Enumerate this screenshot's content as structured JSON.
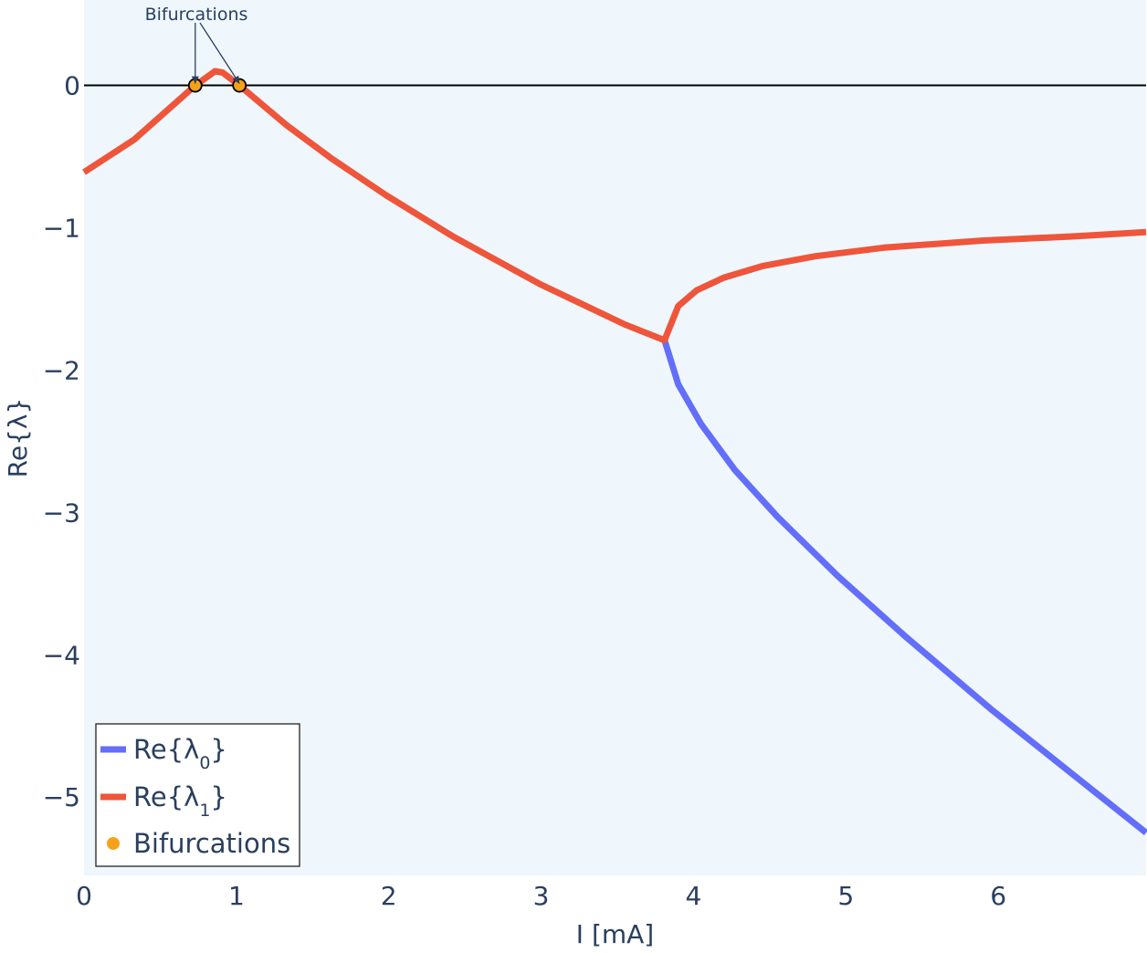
{
  "chart_data": {
    "type": "line",
    "xlabel": "I [mA]",
    "ylabel": "Re{λ}",
    "xlim": [
      0,
      6.97
    ],
    "ylim": [
      -5.55,
      0.6
    ],
    "xticks": [
      0,
      1,
      2,
      3,
      4,
      5,
      6
    ],
    "yticks": [
      0,
      -1,
      -2,
      -3,
      -4,
      -5
    ],
    "grid": false,
    "legend_position": "bottom-left",
    "zero_line": true,
    "plot_background": "#eff7fd",
    "series": [
      {
        "name": "Re{λ0}",
        "color": "#636efa",
        "x": [
          3.81,
          3.9,
          4.05,
          4.27,
          4.55,
          4.95,
          5.4,
          5.95,
          6.5,
          6.97
        ],
        "y": [
          -1.79,
          -2.1,
          -2.38,
          -2.7,
          -3.03,
          -3.45,
          -3.88,
          -4.38,
          -4.85,
          -5.25
        ]
      },
      {
        "name": "Re{λ1}",
        "color": "#ef553b",
        "x": [
          0.0,
          0.33,
          0.73,
          0.86,
          0.91,
          1.02,
          1.33,
          1.62,
          1.98,
          2.42,
          3.0,
          3.55,
          3.81,
          3.9,
          4.02,
          4.2,
          4.45,
          4.8,
          5.25,
          5.9,
          6.5,
          6.97
        ],
        "y": [
          -0.61,
          -0.38,
          0.0,
          0.1,
          0.09,
          0.0,
          -0.28,
          -0.51,
          -0.77,
          -1.06,
          -1.4,
          -1.68,
          -1.79,
          -1.55,
          -1.44,
          -1.35,
          -1.27,
          -1.2,
          -1.14,
          -1.09,
          -1.06,
          -1.03
        ]
      }
    ],
    "markers": {
      "name": "Bifurcations",
      "color": "#f6a117",
      "points": [
        {
          "x": 0.73,
          "y": 0.0
        },
        {
          "x": 1.02,
          "y": 0.0
        }
      ]
    },
    "annotation": {
      "text": "Bifurcations"
    },
    "legend": [
      {
        "base": "Re{λ",
        "sub": "0",
        "close": "}"
      },
      {
        "base": "Re{λ",
        "sub": "1",
        "close": "}"
      },
      {
        "label": "Bifurcations"
      }
    ]
  }
}
